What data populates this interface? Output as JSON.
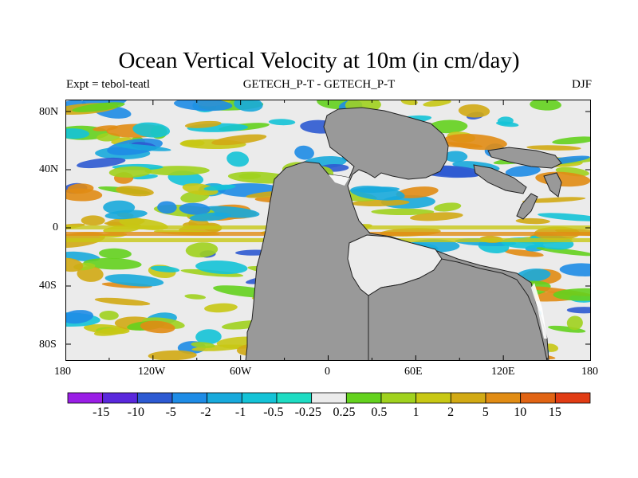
{
  "title": "Ocean Vertical Velocity at 10m (in cm/day)",
  "subtitle_left": "Expt = tebol-teatl",
  "subtitle_center": "GETECH_P-T - GETECH_P-T",
  "subtitle_right": "DJF",
  "lat_labels": [
    "80N",
    "40N",
    "0",
    "40S",
    "80S"
  ],
  "lon_labels": [
    "180",
    "120W",
    "60W",
    "0",
    "60E",
    "120E",
    "180"
  ],
  "colorbar": {
    "labels": [
      "-15",
      "-10",
      "-5",
      "-2",
      "-1",
      "-0.5",
      "-0.25",
      "0.25",
      "0.5",
      "1",
      "2",
      "5",
      "10",
      "15"
    ],
    "colors": [
      "#9a1ee6",
      "#5a28dc",
      "#2d5ad2",
      "#1e8ce6",
      "#18aadc",
      "#14c3d7",
      "#1edcc3",
      "#ebebeb",
      "#64d21e",
      "#a0d21e",
      "#c8c814",
      "#d2aa14",
      "#e18c14",
      "#e16414",
      "#e13c14"
    ]
  },
  "colors": {
    "land": "#999999",
    "ocean_neutral": "#ebebeb"
  }
}
